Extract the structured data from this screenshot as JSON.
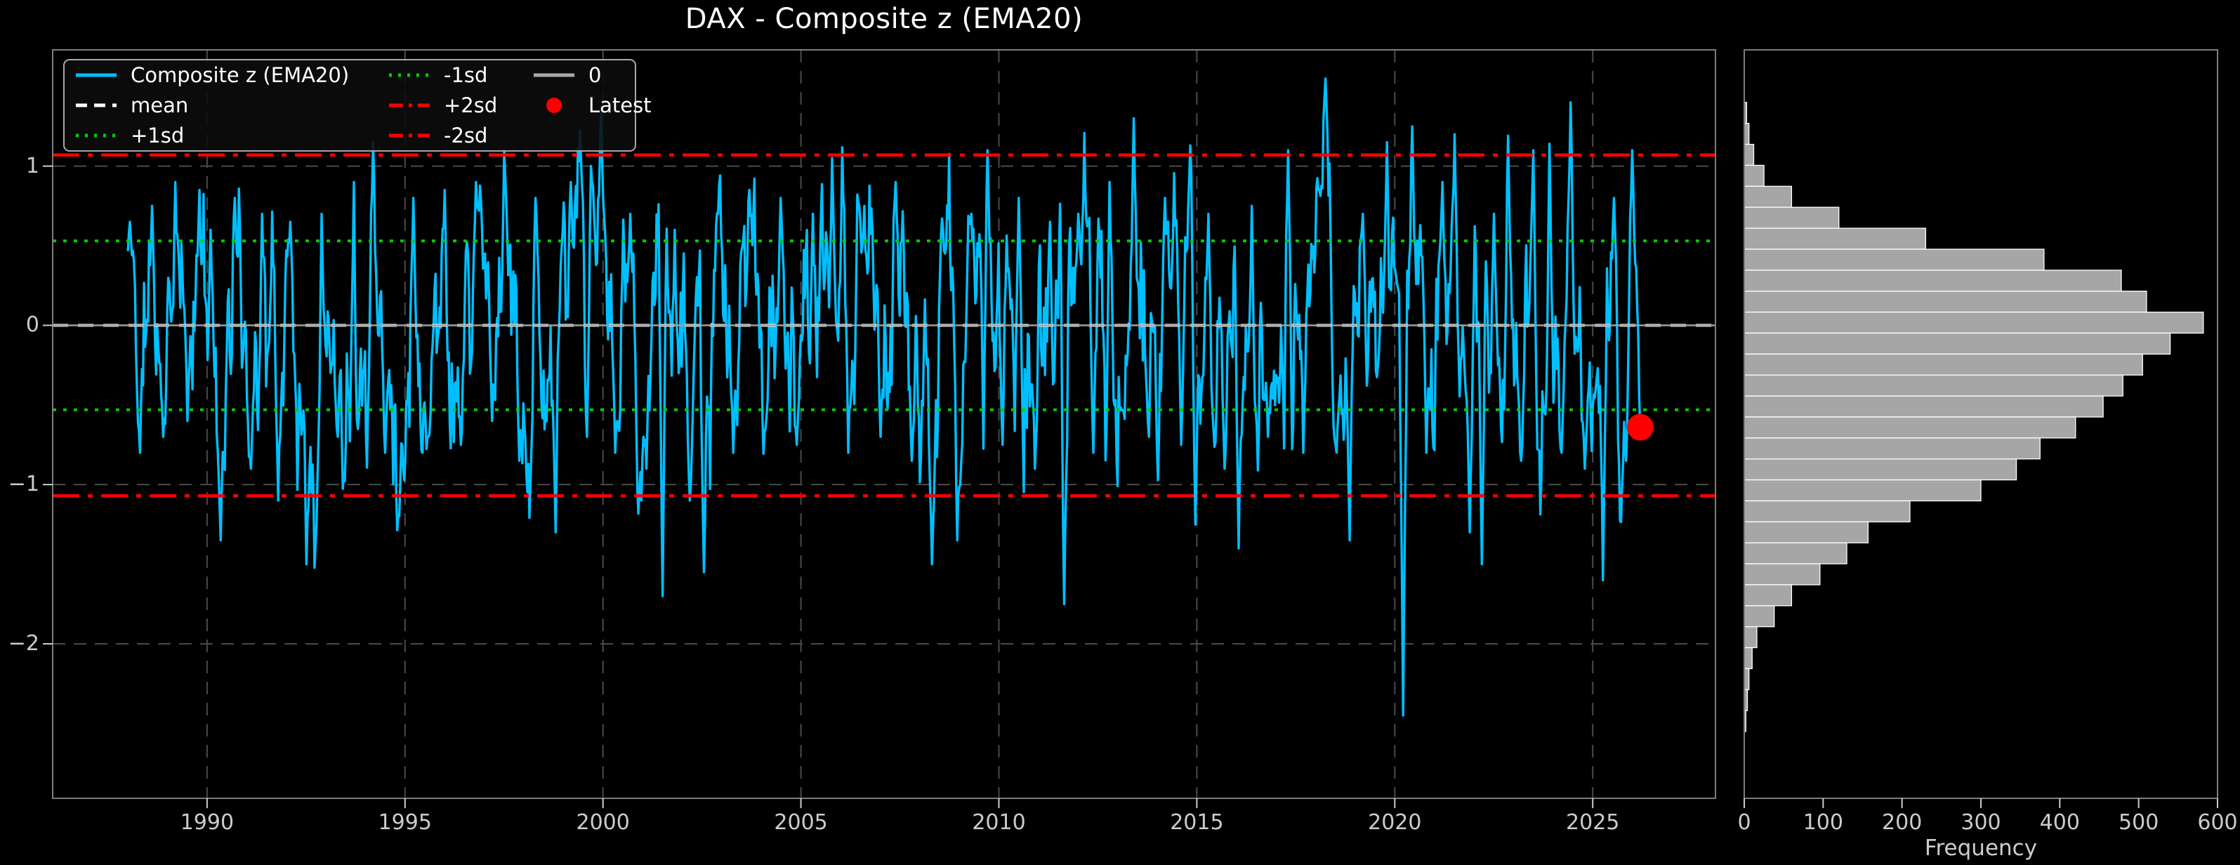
{
  "title": "DAX - Composite z (EMA20)",
  "colors": {
    "background": "#000000",
    "series": "#00BFFF",
    "mean_line": "#FFFFFF",
    "sd1_line": "#00CC00",
    "sd2_line": "#FF0000",
    "zero_line": "#A0A0A0",
    "latest_marker": "#FF0000",
    "grid": "#4A4A4A",
    "spine": "#7D7D7D",
    "tick_color": "#CCCCCC",
    "hist_bar_fill": "#A6A6A6",
    "hist_bar_edge": "#FFFFFF"
  },
  "legend": {
    "items": [
      {
        "label": "Composite z (EMA20)",
        "swatch": "solid",
        "color": "#00BFFF"
      },
      {
        "label": "mean",
        "swatch": "dashed",
        "color": "#FFFFFF"
      },
      {
        "label": "+1sd",
        "swatch": "dotted",
        "color": "#00CC00"
      },
      {
        "label": "-1sd",
        "swatch": "dotted",
        "color": "#00CC00"
      },
      {
        "label": "+2sd",
        "swatch": "dashdot",
        "color": "#FF0000"
      },
      {
        "label": "-2sd",
        "swatch": "dashdot",
        "color": "#FF0000"
      },
      {
        "label": "0",
        "swatch": "solid",
        "color": "#AAAAAA"
      },
      {
        "label": "Latest",
        "swatch": "marker",
        "color": "#FF0000"
      }
    ]
  },
  "chart_data": [
    {
      "name": "composite-z-timeseries",
      "type": "line",
      "title": "DAX - Composite z (EMA20)",
      "xlabel": "",
      "ylabel": "",
      "xlim": [
        1986.1,
        2028.1
      ],
      "ylim": [
        -2.97,
        1.73
      ],
      "x_ticks": [
        1990,
        1995,
        2000,
        2005,
        2010,
        2015,
        2020,
        2025
      ],
      "x_tick_labels": [
        "1990",
        "1995",
        "2000",
        "2005",
        "2010",
        "2015",
        "2020",
        "2025"
      ],
      "y_ticks": [
        1,
        0,
        -1,
        -2
      ],
      "y_tick_labels": [
        "1",
        "0",
        "−1",
        "−2"
      ],
      "grid": true,
      "legend_position": "upper-left",
      "series_name": "Composite z (EMA20)",
      "reference_lines": [
        {
          "label": "mean",
          "value": 0.0,
          "color": "#FFFFFF",
          "style": "dashed"
        },
        {
          "label": "+1sd",
          "value": 0.53,
          "color": "#00CC00",
          "style": "dotted"
        },
        {
          "label": "-1sd",
          "value": -0.53,
          "color": "#00CC00",
          "style": "dotted"
        },
        {
          "label": "+2sd",
          "value": 1.07,
          "color": "#FF0000",
          "style": "dashdot"
        },
        {
          "label": "-2sd",
          "value": -1.07,
          "color": "#FF0000",
          "style": "dashdot"
        },
        {
          "label": "0",
          "value": 0.0,
          "color": "#A0A0A0",
          "style": "solid"
        }
      ],
      "latest_point": {
        "x": 2026.2,
        "y": -0.64,
        "label": "Latest",
        "color": "#FF0000"
      },
      "series": {
        "x_start": 1988.0,
        "x_end": 2026.2,
        "n_points": 1500,
        "mean": 0.0,
        "sd": 0.53,
        "seed": 11,
        "keypoints": [
          [
            1988.05,
            0.65
          ],
          [
            1988.3,
            -0.8
          ],
          [
            1988.6,
            0.75
          ],
          [
            1988.9,
            -0.7
          ],
          [
            1989.2,
            0.9
          ],
          [
            1989.5,
            -0.6
          ],
          [
            1989.8,
            0.85
          ],
          [
            1990.1,
            0.6
          ],
          [
            1990.35,
            -1.35
          ],
          [
            1990.7,
            0.8
          ],
          [
            1991.1,
            -0.9
          ],
          [
            1991.4,
            0.7
          ],
          [
            1991.8,
            -1.1
          ],
          [
            1992.1,
            0.65
          ],
          [
            1992.5,
            -1.5
          ],
          [
            1992.9,
            0.7
          ],
          [
            1993.3,
            -0.7
          ],
          [
            1993.7,
            0.9
          ],
          [
            1994.2,
            1.15
          ],
          [
            1994.5,
            -0.8
          ],
          [
            1994.85,
            -1.2
          ],
          [
            1995.2,
            0.8
          ],
          [
            1995.6,
            -0.7
          ],
          [
            1996.0,
            0.85
          ],
          [
            1996.4,
            -0.75
          ],
          [
            1996.8,
            0.9
          ],
          [
            1997.2,
            -0.6
          ],
          [
            1997.5,
            1.1
          ],
          [
            1997.9,
            -0.85
          ],
          [
            1998.3,
            0.8
          ],
          [
            1998.8,
            -1.3
          ],
          [
            1999.2,
            0.9
          ],
          [
            1999.6,
            -0.7
          ],
          [
            1999.95,
            1.37
          ],
          [
            2000.3,
            -0.8
          ],
          [
            2000.7,
            0.7
          ],
          [
            2001.1,
            -0.9
          ],
          [
            2001.5,
            -1.7
          ],
          [
            2001.8,
            0.6
          ],
          [
            2002.2,
            -1.1
          ],
          [
            2002.55,
            -1.55
          ],
          [
            2002.9,
            0.7
          ],
          [
            2003.3,
            -0.8
          ],
          [
            2003.7,
            0.85
          ],
          [
            2004.1,
            -0.65
          ],
          [
            2004.5,
            0.8
          ],
          [
            2004.9,
            -0.75
          ],
          [
            2005.3,
            0.7
          ],
          [
            2005.8,
            1.05
          ],
          [
            2006.2,
            -0.8
          ],
          [
            2006.6,
            0.75
          ],
          [
            2007.0,
            -0.7
          ],
          [
            2007.4,
            0.9
          ],
          [
            2007.8,
            -0.85
          ],
          [
            2008.3,
            -1.5
          ],
          [
            2008.6,
            0.6
          ],
          [
            2008.95,
            -1.35
          ],
          [
            2009.3,
            0.7
          ],
          [
            2009.7,
            1.1
          ],
          [
            2010.1,
            -0.75
          ],
          [
            2010.5,
            0.8
          ],
          [
            2010.9,
            -0.9
          ],
          [
            2011.3,
            0.65
          ],
          [
            2011.65,
            -1.75
          ],
          [
            2012.0,
            0.7
          ],
          [
            2012.4,
            -0.8
          ],
          [
            2012.8,
            0.9
          ],
          [
            2013.4,
            1.3
          ],
          [
            2013.8,
            -0.7
          ],
          [
            2014.2,
            0.8
          ],
          [
            2014.6,
            -0.75
          ],
          [
            2014.95,
            -1.25
          ],
          [
            2015.3,
            0.7
          ],
          [
            2015.7,
            -0.9
          ],
          [
            2016.05,
            -1.4
          ],
          [
            2016.4,
            0.75
          ],
          [
            2016.8,
            -0.7
          ],
          [
            2017.3,
            1.1
          ],
          [
            2017.7,
            -0.8
          ],
          [
            2018.1,
            0.85
          ],
          [
            2018.5,
            -0.75
          ],
          [
            2018.85,
            -1.35
          ],
          [
            2019.2,
            0.7
          ],
          [
            2019.8,
            1.15
          ],
          [
            2020.2,
            -2.45
          ],
          [
            2020.45,
            1.25
          ],
          [
            2020.8,
            -0.8
          ],
          [
            2021.2,
            0.9
          ],
          [
            2021.5,
            1.2
          ],
          [
            2021.9,
            -1.3
          ],
          [
            2022.2,
            -1.5
          ],
          [
            2022.5,
            0.7
          ],
          [
            2022.85,
            1.19
          ],
          [
            2023.2,
            -0.85
          ],
          [
            2023.5,
            1.1
          ],
          [
            2023.9,
            1.14
          ],
          [
            2024.2,
            -0.8
          ],
          [
            2024.45,
            1.4
          ],
          [
            2024.8,
            -0.9
          ],
          [
            2025.25,
            -1.6
          ],
          [
            2025.55,
            0.8
          ],
          [
            2025.85,
            -0.85
          ],
          [
            2026.0,
            1.1
          ],
          [
            2026.2,
            -0.64
          ]
        ]
      }
    },
    {
      "name": "composite-z-histogram",
      "type": "bar",
      "orientation": "horizontal",
      "title": "",
      "xlabel": "Frequency",
      "ylabel": "",
      "xlim": [
        0,
        600
      ],
      "ylim": [
        -2.97,
        1.73
      ],
      "x_ticks": [
        0,
        100,
        200,
        300,
        400,
        500,
        600
      ],
      "x_tick_labels": [
        "0",
        "100",
        "200",
        "300",
        "400",
        "500",
        "600"
      ],
      "grid": false,
      "bins": {
        "z_top": 1.4,
        "bin_height": 0.1317,
        "frequencies_top_to_bottom": [
          3,
          6,
          12,
          25,
          60,
          120,
          230,
          380,
          478,
          510,
          582,
          540,
          505,
          480,
          455,
          420,
          375,
          345,
          300,
          210,
          157,
          130,
          96,
          60,
          38,
          16,
          10,
          6,
          4,
          2
        ]
      }
    }
  ]
}
